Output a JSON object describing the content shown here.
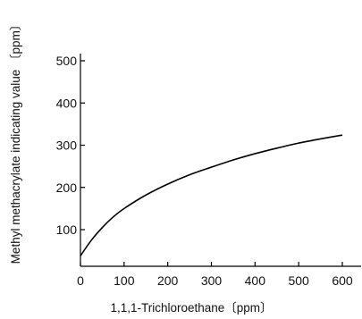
{
  "chart_data": {
    "type": "line",
    "xlabel": "1,1,1-Trichloroethane〔ppm〕",
    "ylabel": "Methyl methacrylate indicating value 〔ppm〕",
    "xlim": [
      0,
      600
    ],
    "ylim": [
      0,
      500
    ],
    "x_ticks": [
      0,
      100,
      200,
      300,
      400,
      500,
      600
    ],
    "y_ticks": [
      100,
      200,
      300,
      400,
      500
    ],
    "grid": false,
    "series": [
      {
        "x": [
          0,
          25,
          50,
          75,
          100,
          150,
          200,
          250,
          300,
          350,
          400,
          450,
          500,
          550,
          600
        ],
        "y": [
          38,
          75,
          105,
          130,
          150,
          182,
          208,
          230,
          248,
          265,
          280,
          293,
          305,
          315,
          324
        ],
        "color": "#000000"
      }
    ]
  }
}
